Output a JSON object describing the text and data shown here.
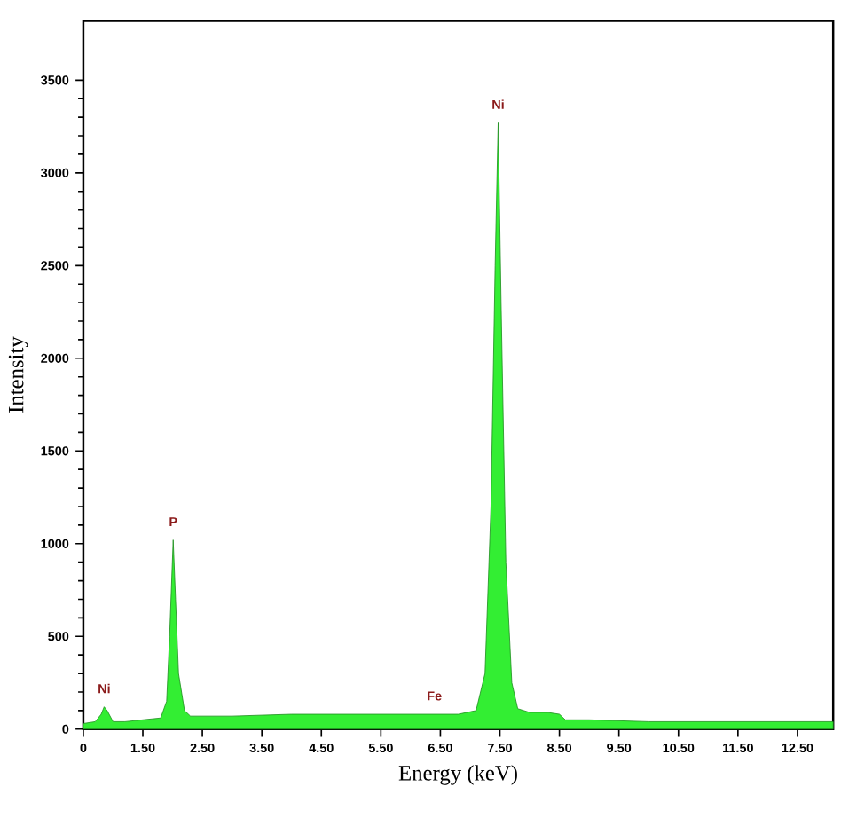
{
  "chart_data": {
    "type": "area",
    "xlabel": "Energy (keV)",
    "ylabel": "Intensity",
    "xlim": [
      0.5,
      13.1
    ],
    "ylim": [
      0,
      3820
    ],
    "xticks": [
      {
        "value": 0.5,
        "label": "0"
      },
      {
        "value": 1.5,
        "label": "1.50"
      },
      {
        "value": 2.5,
        "label": "2.50"
      },
      {
        "value": 3.5,
        "label": "3.50"
      },
      {
        "value": 4.5,
        "label": "4.50"
      },
      {
        "value": 5.5,
        "label": "5.50"
      },
      {
        "value": 6.5,
        "label": "6.50"
      },
      {
        "value": 7.5,
        "label": "7.50"
      },
      {
        "value": 8.5,
        "label": "8.50"
      },
      {
        "value": 9.5,
        "label": "9.50"
      },
      {
        "value": 10.5,
        "label": "10.50"
      },
      {
        "value": 11.5,
        "label": "11.50"
      },
      {
        "value": 12.5,
        "label": "12.50"
      }
    ],
    "yticks": [
      0,
      500,
      1000,
      1500,
      2000,
      2500,
      3000,
      3500
    ],
    "annotations": [
      {
        "text": "Ni",
        "x": 0.85,
        "y": 120
      },
      {
        "text": "P",
        "x": 2.01,
        "y": 1020
      },
      {
        "text": "Fe",
        "x": 6.4,
        "y": 80
      },
      {
        "text": "Ni",
        "x": 7.47,
        "y": 3270
      }
    ],
    "series": [
      {
        "color": "#33ee33",
        "x": [
          0.5,
          0.7,
          0.8,
          0.85,
          0.9,
          1.0,
          1.2,
          1.5,
          1.8,
          1.9,
          1.95,
          2.01,
          2.05,
          2.1,
          2.2,
          2.3,
          3.0,
          4.0,
          5.0,
          6.0,
          6.4,
          6.8,
          7.1,
          7.25,
          7.35,
          7.42,
          7.47,
          7.52,
          7.6,
          7.7,
          7.8,
          8.0,
          8.3,
          8.5,
          8.6,
          9.0,
          10.0,
          11.0,
          12.0,
          13.1
        ],
        "values": [
          30,
          40,
          80,
          120,
          100,
          40,
          40,
          50,
          60,
          150,
          500,
          1020,
          700,
          300,
          100,
          70,
          70,
          80,
          80,
          80,
          80,
          80,
          100,
          300,
          1200,
          2500,
          3270,
          2300,
          900,
          250,
          110,
          90,
          90,
          80,
          50,
          50,
          40,
          40,
          40,
          40
        ]
      }
    ]
  }
}
